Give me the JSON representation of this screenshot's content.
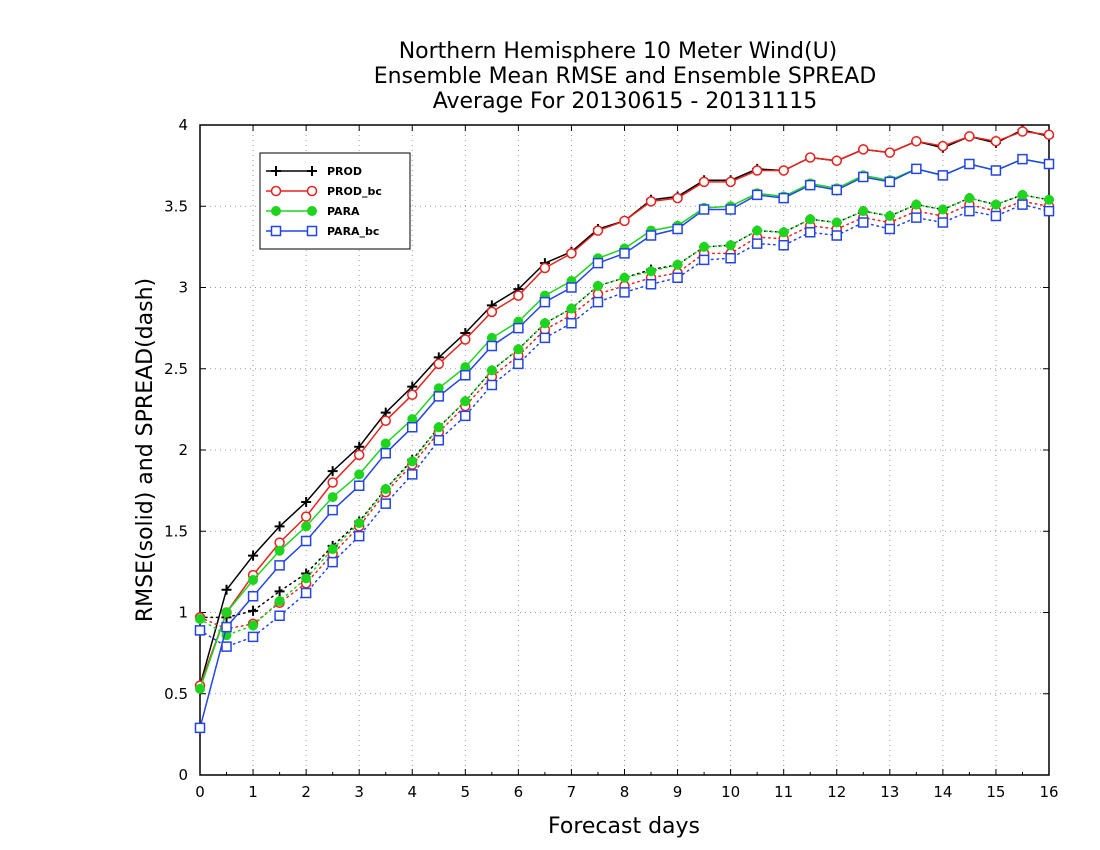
{
  "chart_data": {
    "type": "line",
    "title": [
      "Northern Hemisphere 10 Meter Wind(U)",
      "Ensemble Mean RMSE and Ensemble SPREAD",
      "Average For 20130615 - 20131115"
    ],
    "xlabel": "Forecast days",
    "ylabel": "RMSE(solid) and SPREAD(dash)",
    "xlim": [
      0,
      16
    ],
    "ylim": [
      0,
      4
    ],
    "xticks": [
      0,
      1,
      2,
      3,
      4,
      5,
      6,
      7,
      8,
      9,
      10,
      11,
      12,
      13,
      14,
      15,
      16
    ],
    "yticks": [
      0,
      0.5,
      1,
      1.5,
      2,
      2.5,
      3,
      3.5,
      4
    ],
    "ytick_labels": [
      "0",
      "0.5",
      "1",
      "1.5",
      "2",
      "2.5",
      "3",
      "3.5",
      "4"
    ],
    "grid": true,
    "legend_position": "top-left",
    "x": [
      0,
      0.5,
      1,
      1.5,
      2,
      2.5,
      3,
      3.5,
      4,
      4.5,
      5,
      5.5,
      6,
      6.5,
      7,
      7.5,
      8,
      8.5,
      9,
      9.5,
      10,
      10.5,
      11,
      11.5,
      12,
      12.5,
      13,
      13.5,
      14,
      14.5,
      15,
      15.5,
      16
    ],
    "series": [
      {
        "name": "PROD",
        "color": "#000000",
        "marker": "plus",
        "rmse": [
          0.55,
          1.14,
          1.35,
          1.53,
          1.68,
          1.87,
          2.02,
          2.23,
          2.39,
          2.57,
          2.72,
          2.89,
          2.99,
          3.15,
          3.22,
          3.36,
          3.41,
          3.54,
          3.56,
          3.66,
          3.66,
          3.73,
          3.72,
          3.8,
          3.78,
          3.85,
          3.83,
          3.9,
          3.86,
          3.93,
          3.89,
          3.97,
          3.93
        ],
        "spread": [
          0.97,
          0.97,
          1.01,
          1.13,
          1.24,
          1.41,
          1.56,
          1.76,
          1.94,
          2.14,
          2.3,
          2.49,
          2.62,
          2.78,
          2.87,
          3.01,
          3.06,
          3.11,
          3.14,
          3.25,
          3.26,
          3.35,
          3.34,
          3.42,
          3.4,
          3.47,
          3.44,
          3.51,
          3.48,
          3.55,
          3.51,
          3.57,
          3.54
        ]
      },
      {
        "name": "PROD_bc",
        "color": "#e8221e",
        "marker": "circle-open",
        "rmse": [
          0.55,
          1.0,
          1.23,
          1.43,
          1.59,
          1.8,
          1.97,
          2.18,
          2.34,
          2.53,
          2.68,
          2.85,
          2.95,
          3.12,
          3.21,
          3.35,
          3.41,
          3.53,
          3.55,
          3.65,
          3.65,
          3.72,
          3.72,
          3.8,
          3.78,
          3.85,
          3.83,
          3.9,
          3.87,
          3.93,
          3.9,
          3.96,
          3.94
        ],
        "spread": [
          0.97,
          0.9,
          0.93,
          1.06,
          1.18,
          1.36,
          1.53,
          1.74,
          1.91,
          2.11,
          2.27,
          2.45,
          2.58,
          2.74,
          2.83,
          2.96,
          3.01,
          3.06,
          3.09,
          3.21,
          3.21,
          3.31,
          3.3,
          3.38,
          3.36,
          3.43,
          3.4,
          3.47,
          3.44,
          3.51,
          3.47,
          3.53,
          3.5
        ]
      },
      {
        "name": "PARA",
        "color": "#1fd41f",
        "marker": "circle-filled",
        "rmse": [
          0.53,
          1.0,
          1.2,
          1.38,
          1.53,
          1.71,
          1.85,
          2.04,
          2.19,
          2.38,
          2.51,
          2.69,
          2.79,
          2.95,
          3.04,
          3.18,
          3.24,
          3.35,
          3.38,
          3.49,
          3.5,
          3.58,
          3.56,
          3.64,
          3.61,
          3.69,
          3.66,
          3.73,
          3.69,
          3.76,
          3.72,
          3.79,
          3.76
        ],
        "spread": [
          0.96,
          0.86,
          0.92,
          1.07,
          1.21,
          1.39,
          1.55,
          1.76,
          1.93,
          2.14,
          2.3,
          2.49,
          2.62,
          2.78,
          2.87,
          3.01,
          3.06,
          3.1,
          3.14,
          3.25,
          3.26,
          3.35,
          3.34,
          3.42,
          3.4,
          3.47,
          3.44,
          3.51,
          3.48,
          3.55,
          3.51,
          3.57,
          3.54
        ]
      },
      {
        "name": "PARA_bc",
        "color": "#2345e5",
        "marker": "square-open",
        "rmse": [
          0.29,
          0.91,
          1.1,
          1.29,
          1.44,
          1.63,
          1.78,
          1.98,
          2.14,
          2.33,
          2.46,
          2.64,
          2.75,
          2.91,
          3.0,
          3.15,
          3.21,
          3.32,
          3.36,
          3.48,
          3.48,
          3.57,
          3.55,
          3.63,
          3.6,
          3.68,
          3.65,
          3.73,
          3.69,
          3.76,
          3.72,
          3.79,
          3.76
        ],
        "spread": [
          0.89,
          0.79,
          0.85,
          0.98,
          1.12,
          1.31,
          1.47,
          1.67,
          1.85,
          2.06,
          2.21,
          2.4,
          2.53,
          2.69,
          2.78,
          2.91,
          2.97,
          3.02,
          3.06,
          3.17,
          3.18,
          3.27,
          3.26,
          3.34,
          3.32,
          3.4,
          3.36,
          3.43,
          3.4,
          3.47,
          3.44,
          3.51,
          3.47
        ]
      }
    ]
  }
}
